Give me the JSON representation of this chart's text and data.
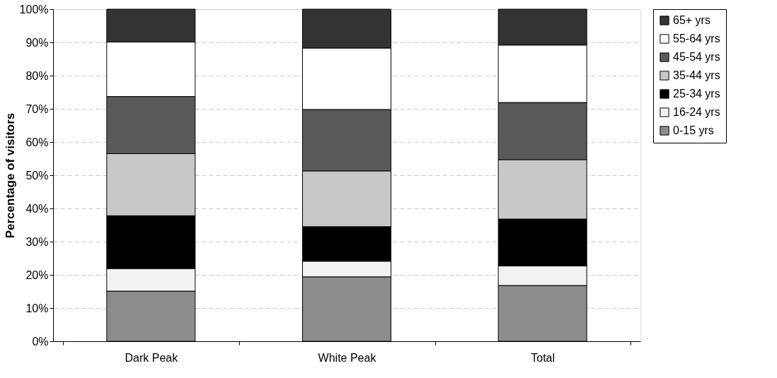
{
  "chart_data": {
    "type": "bar",
    "stacked": true,
    "ylabel": "Percentage of visitors",
    "categories": [
      "Dark Peak",
      "White Peak",
      "Total"
    ],
    "series": [
      {
        "name": "0-15 yrs",
        "color": "#8c8c8c",
        "values": [
          15.1,
          19.4,
          16.8
        ]
      },
      {
        "name": "16-24 yrs",
        "color": "#f2f2f2",
        "values": [
          6.8,
          4.7,
          5.9
        ]
      },
      {
        "name": "25-34 yrs",
        "color": "#000000",
        "values": [
          15.9,
          10.4,
          14.1
        ]
      },
      {
        "name": "35-44 yrs",
        "color": "#c8c8c8",
        "values": [
          18.7,
          16.8,
          17.9
        ]
      },
      {
        "name": "45-54 yrs",
        "color": "#5a5a5a",
        "values": [
          17.2,
          18.5,
          17.2
        ]
      },
      {
        "name": "55-64 yrs",
        "color": "#ffffff",
        "values": [
          16.4,
          18.5,
          17.3
        ]
      },
      {
        "name": "65+ yrs",
        "color": "#333333",
        "values": [
          9.9,
          11.7,
          10.8
        ]
      }
    ],
    "ylim": [
      0,
      100
    ],
    "yticks": [
      {
        "value": 0,
        "label": "0%"
      },
      {
        "value": 10,
        "label": "10%"
      },
      {
        "value": 20,
        "label": "20%"
      },
      {
        "value": 30,
        "label": "30%"
      },
      {
        "value": 40,
        "label": "40%"
      },
      {
        "value": 50,
        "label": "50%"
      },
      {
        "value": 60,
        "label": "60%"
      },
      {
        "value": 70,
        "label": "70%"
      },
      {
        "value": 80,
        "label": "80%"
      },
      {
        "value": 90,
        "label": "90%"
      },
      {
        "value": 100,
        "label": "100%"
      }
    ],
    "grid": "y",
    "legend": "right"
  }
}
